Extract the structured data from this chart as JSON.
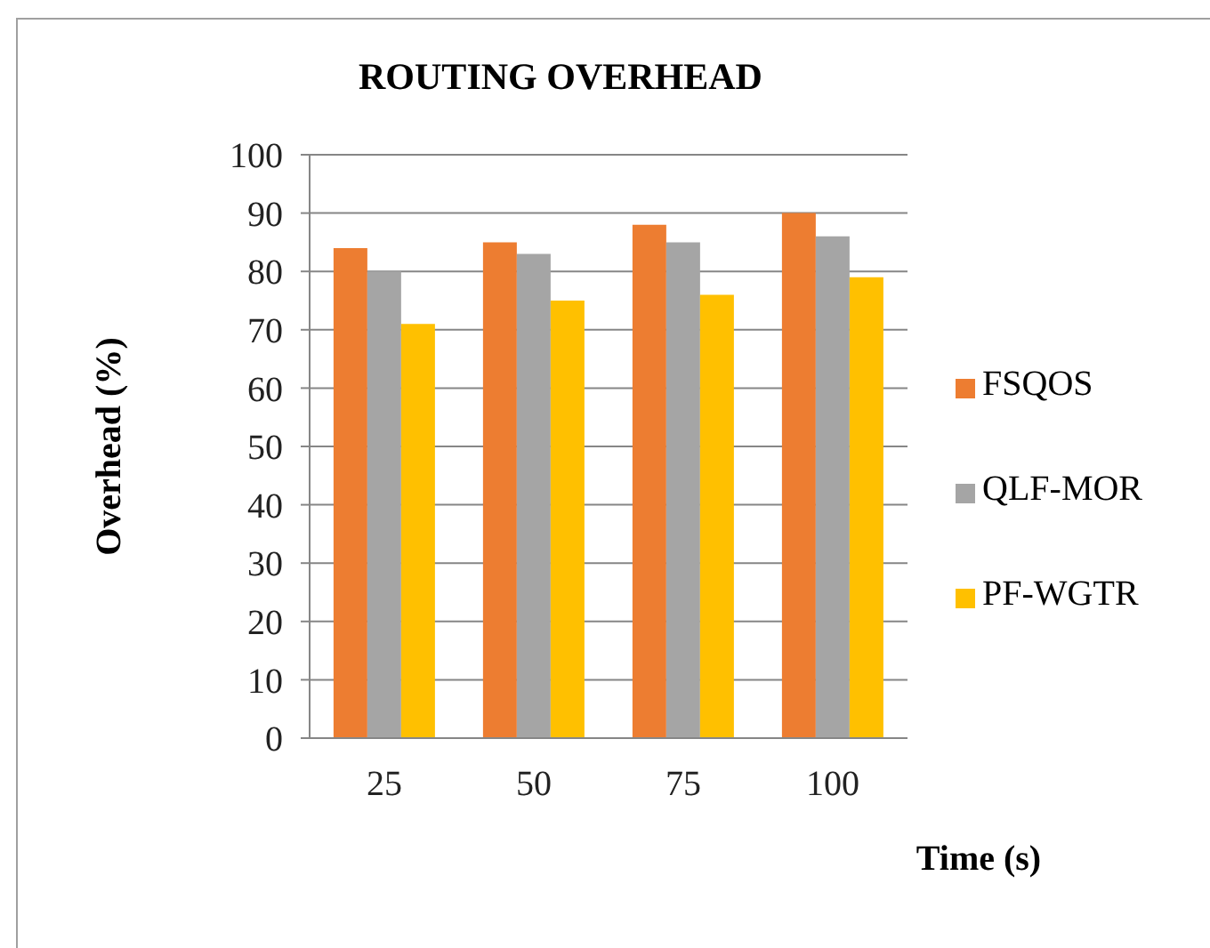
{
  "chart_data": {
    "type": "bar",
    "title": "ROUTING OVERHEAD",
    "xlabel": "Time (s)",
    "ylabel": "Overhead (%)",
    "categories": [
      "25",
      "50",
      "75",
      "100"
    ],
    "series": [
      {
        "name": "FSQOS",
        "color": "#ed7d31",
        "values": [
          84,
          85,
          88,
          90
        ]
      },
      {
        "name": "QLF-MOR",
        "color": "#a5a5a5",
        "values": [
          80,
          83,
          85,
          86
        ]
      },
      {
        "name": "PF-WGTR",
        "color": "#ffc000",
        "values": [
          71,
          75,
          76,
          79
        ]
      }
    ],
    "ylim": [
      0,
      100
    ],
    "yticks": [
      0,
      10,
      20,
      30,
      40,
      50,
      60,
      70,
      80,
      90,
      100
    ],
    "grid": "y",
    "legend": "right"
  }
}
